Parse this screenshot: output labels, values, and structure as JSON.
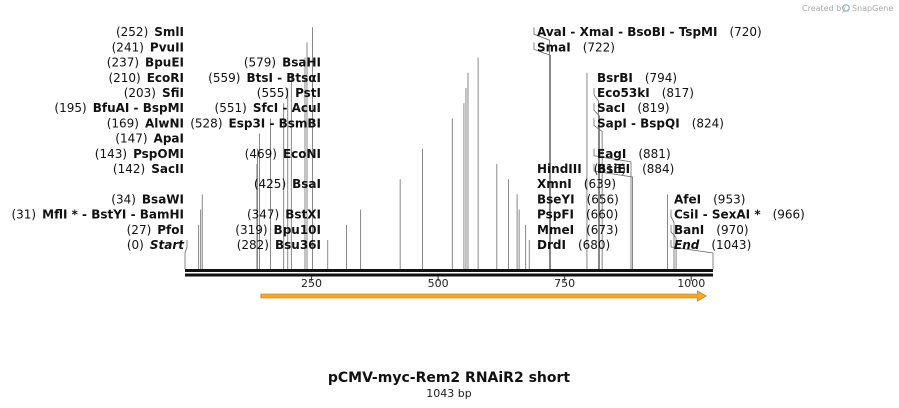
{
  "credit": {
    "prefix": "Created by",
    "brand": "SnapGene"
  },
  "map": {
    "name": "pCMV-myc-Rem2 RNAiR2 short",
    "length_label": "1043 bp",
    "length": 1043,
    "ticks": [
      "250",
      "500",
      "750",
      "1000"
    ],
    "feature": {
      "name": "RNAi arrow",
      "start": 150,
      "end": 1030,
      "color": "#f7a823"
    }
  },
  "sites": [
    {
      "id": "start",
      "row": 0,
      "col": "L1",
      "pos": 0,
      "num": "(0)",
      "name": "Start",
      "italic": true
    },
    {
      "id": "pfoi",
      "row": 1,
      "col": "L1",
      "pos": 27,
      "num": "(27)",
      "name": "PfoI"
    },
    {
      "id": "mfli",
      "row": 2,
      "col": "L1",
      "pos": 31,
      "num": "(31)",
      "name": "MflI *  -  BstYI  -  BamHI"
    },
    {
      "id": "bsawi",
      "row": 3,
      "col": "L1",
      "pos": 34,
      "num": "(34)",
      "name": "BsaWI"
    },
    {
      "id": "sacii",
      "row": 5,
      "col": "L1",
      "pos": 142,
      "num": "(142)",
      "name": "SacII"
    },
    {
      "id": "psp",
      "row": 6,
      "col": "L1",
      "pos": 143,
      "num": "(143)",
      "name": "PspOMI"
    },
    {
      "id": "apai",
      "row": 7,
      "col": "L1",
      "pos": 147,
      "num": "(147)",
      "name": "ApaI"
    },
    {
      "id": "alwni",
      "row": 8,
      "col": "L1",
      "pos": 169,
      "num": "(169)",
      "name": "AlwNI"
    },
    {
      "id": "bfuai",
      "row": 9,
      "col": "L1",
      "pos": 195,
      "num": "(195)",
      "name": "BfuAI  -  BspMI"
    },
    {
      "id": "sfii",
      "row": 10,
      "col": "L1",
      "pos": 203,
      "num": "(203)",
      "name": "SfiI"
    },
    {
      "id": "ecori",
      "row": 11,
      "col": "L1",
      "pos": 210,
      "num": "(210)",
      "name": "EcoRI"
    },
    {
      "id": "bpuei",
      "row": 12,
      "col": "L1",
      "pos": 237,
      "num": "(237)",
      "name": "BpuEI"
    },
    {
      "id": "pvuii",
      "row": 13,
      "col": "L1",
      "pos": 241,
      "num": "(241)",
      "name": "PvuII"
    },
    {
      "id": "smli",
      "row": 14,
      "col": "L1",
      "pos": 252,
      "num": "(252)",
      "name": "SmlI"
    },
    {
      "id": "bsu36i",
      "row": 0,
      "col": "L2",
      "pos": 282,
      "num": "(282)",
      "name": "Bsu36I"
    },
    {
      "id": "bpu10i",
      "row": 1,
      "col": "L2",
      "pos": 319,
      "num": "(319)",
      "name": "Bpu10I"
    },
    {
      "id": "bstxi",
      "row": 2,
      "col": "L2",
      "pos": 347,
      "num": "(347)",
      "name": "BstXI"
    },
    {
      "id": "bsai",
      "row": 4,
      "col": "L2",
      "pos": 425,
      "num": "(425)",
      "name": "BsaI"
    },
    {
      "id": "econi",
      "row": 6,
      "col": "L2",
      "pos": 469,
      "num": "(469)",
      "name": "EcoNI"
    },
    {
      "id": "esp3i",
      "row": 8,
      "col": "L2",
      "pos": 528,
      "num": "(528)",
      "name": "Esp3I  -  BsmBI"
    },
    {
      "id": "sfci",
      "row": 9,
      "col": "L2",
      "pos": 551,
      "num": "(551)",
      "name": "SfcI  -  AcuI"
    },
    {
      "id": "psti",
      "row": 10,
      "col": "L2",
      "pos": 555,
      "num": "(555)",
      "name": "PstI"
    },
    {
      "id": "btsi",
      "row": 11,
      "col": "L2",
      "pos": 559,
      "num": "(559)",
      "name": "BtsI  -  BtsαI"
    },
    {
      "id": "bsahi",
      "row": 12,
      "col": "L2",
      "pos": 579,
      "num": "(579)",
      "name": "BsaHI"
    },
    {
      "id": "drdi",
      "row": 0,
      "col": "R1",
      "pos": 680,
      "num": "(680)",
      "name": "DrdI"
    },
    {
      "id": "mmei",
      "row": 1,
      "col": "R1",
      "pos": 673,
      "num": "(673)",
      "name": "MmeI"
    },
    {
      "id": "pspfi",
      "row": 2,
      "col": "R1",
      "pos": 660,
      "num": "(660)",
      "name": "PspFI"
    },
    {
      "id": "bseyi",
      "row": 3,
      "col": "R1",
      "pos": 656,
      "num": "(656)",
      "name": "BseYI"
    },
    {
      "id": "xmni",
      "row": 4,
      "col": "R1",
      "pos": 639,
      "num": "(639)",
      "name": "XmnI"
    },
    {
      "id": "hindiii",
      "row": 5,
      "col": "R1",
      "pos": 616,
      "num": "(616)",
      "name": "HindIII"
    },
    {
      "id": "smai",
      "row": 13,
      "col": "R1",
      "pos": 722,
      "num": "(722)",
      "name": "SmaI"
    },
    {
      "id": "avai",
      "row": 14,
      "col": "R1",
      "pos": 720,
      "num": "(720)",
      "name": "AvaI  -  XmaI  -  BsoBI  -  TspMI"
    },
    {
      "id": "bsrbi",
      "row": 11,
      "col": "R2",
      "pos": 794,
      "num": "(794)",
      "name": "BsrBI"
    },
    {
      "id": "eco53ki",
      "row": 10,
      "col": "R2",
      "pos": 817,
      "num": "(817)",
      "name": "Eco53kI"
    },
    {
      "id": "saci",
      "row": 9,
      "col": "R2",
      "pos": 819,
      "num": "(819)",
      "name": "SacI"
    },
    {
      "id": "sapi",
      "row": 8,
      "col": "R2",
      "pos": 824,
      "num": "(824)",
      "name": "SapI  -  BspQI"
    },
    {
      "id": "eagi",
      "row": 6,
      "col": "R2",
      "pos": 881,
      "num": "(881)",
      "name": "EagI"
    },
    {
      "id": "bsiei",
      "row": 5,
      "col": "R2",
      "pos": 884,
      "num": "(884)",
      "name": "BsiEI"
    },
    {
      "id": "afei",
      "row": 3,
      "col": "R3",
      "pos": 953,
      "num": "(953)",
      "name": "AfeI"
    },
    {
      "id": "csii",
      "row": 2,
      "col": "R3",
      "pos": 966,
      "num": "(966)",
      "name": "CsiI  -  SexAI *"
    },
    {
      "id": "bani",
      "row": 1,
      "col": "R3",
      "pos": 970,
      "num": "(970)",
      "name": "BanI"
    },
    {
      "id": "end",
      "row": 0,
      "col": "R3",
      "pos": 1043,
      "num": "(1043)",
      "name": "End",
      "italic": true
    }
  ]
}
